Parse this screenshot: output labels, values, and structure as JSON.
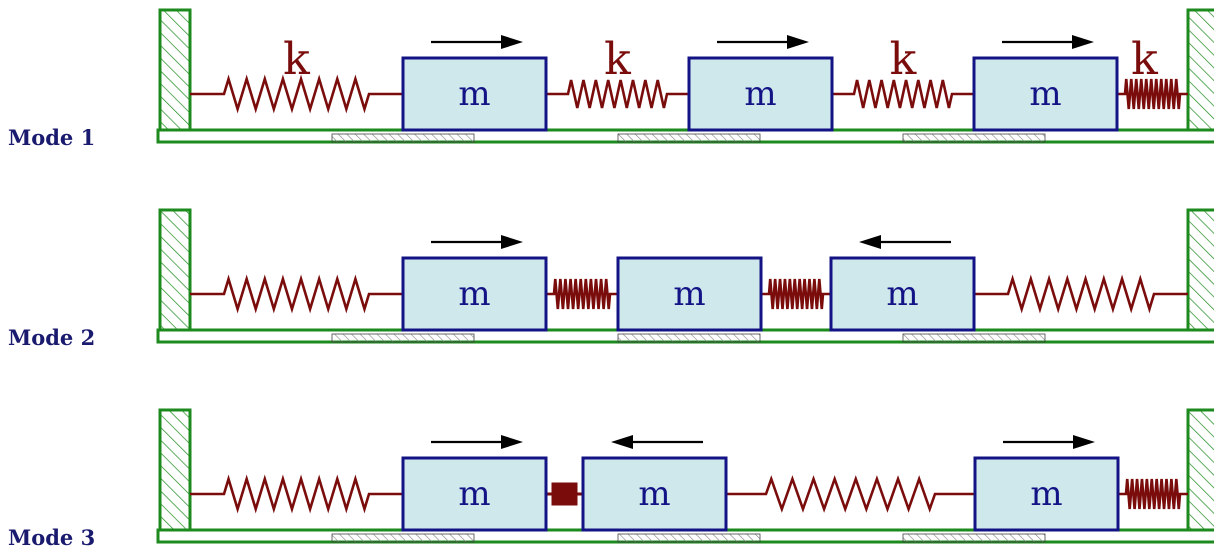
{
  "colors": {
    "wall": "#1c8a1c",
    "mass_fill": "#cfe8ec",
    "mass_stroke": "#131385",
    "spring": "#7a0c0c",
    "arrow": "#000000",
    "label": "#1a1a6e",
    "hatch_grey": "#8c8c8c"
  },
  "modes": [
    {
      "label": "Mode 1",
      "masses": [
        {
          "label": "m",
          "arrow": "right"
        },
        {
          "label": "m",
          "arrow": "right"
        },
        {
          "label": "m",
          "arrow": "right"
        }
      ],
      "springs": [
        {
          "label": "k",
          "state": "relaxed"
        },
        {
          "label": "k",
          "state": "compressed"
        },
        {
          "label": "k",
          "state": "compressed"
        },
        {
          "label": "k",
          "state": "very-compressed"
        }
      ]
    },
    {
      "label": "Mode 2",
      "masses": [
        {
          "label": "m",
          "arrow": "right"
        },
        {
          "label": "m",
          "arrow": "none"
        },
        {
          "label": "m",
          "arrow": "left"
        }
      ],
      "springs": [
        {
          "label": "",
          "state": "relaxed"
        },
        {
          "label": "",
          "state": "very-compressed"
        },
        {
          "label": "",
          "state": "very-compressed"
        },
        {
          "label": "",
          "state": "relaxed"
        }
      ]
    },
    {
      "label": "Mode 3",
      "masses": [
        {
          "label": "m",
          "arrow": "right"
        },
        {
          "label": "m",
          "arrow": "left"
        },
        {
          "label": "m",
          "arrow": "right"
        }
      ],
      "springs": [
        {
          "label": "",
          "state": "relaxed"
        },
        {
          "label": "",
          "state": "fully-compressed"
        },
        {
          "label": "",
          "state": "stretched"
        },
        {
          "label": "",
          "state": "very-compressed"
        }
      ]
    }
  ]
}
